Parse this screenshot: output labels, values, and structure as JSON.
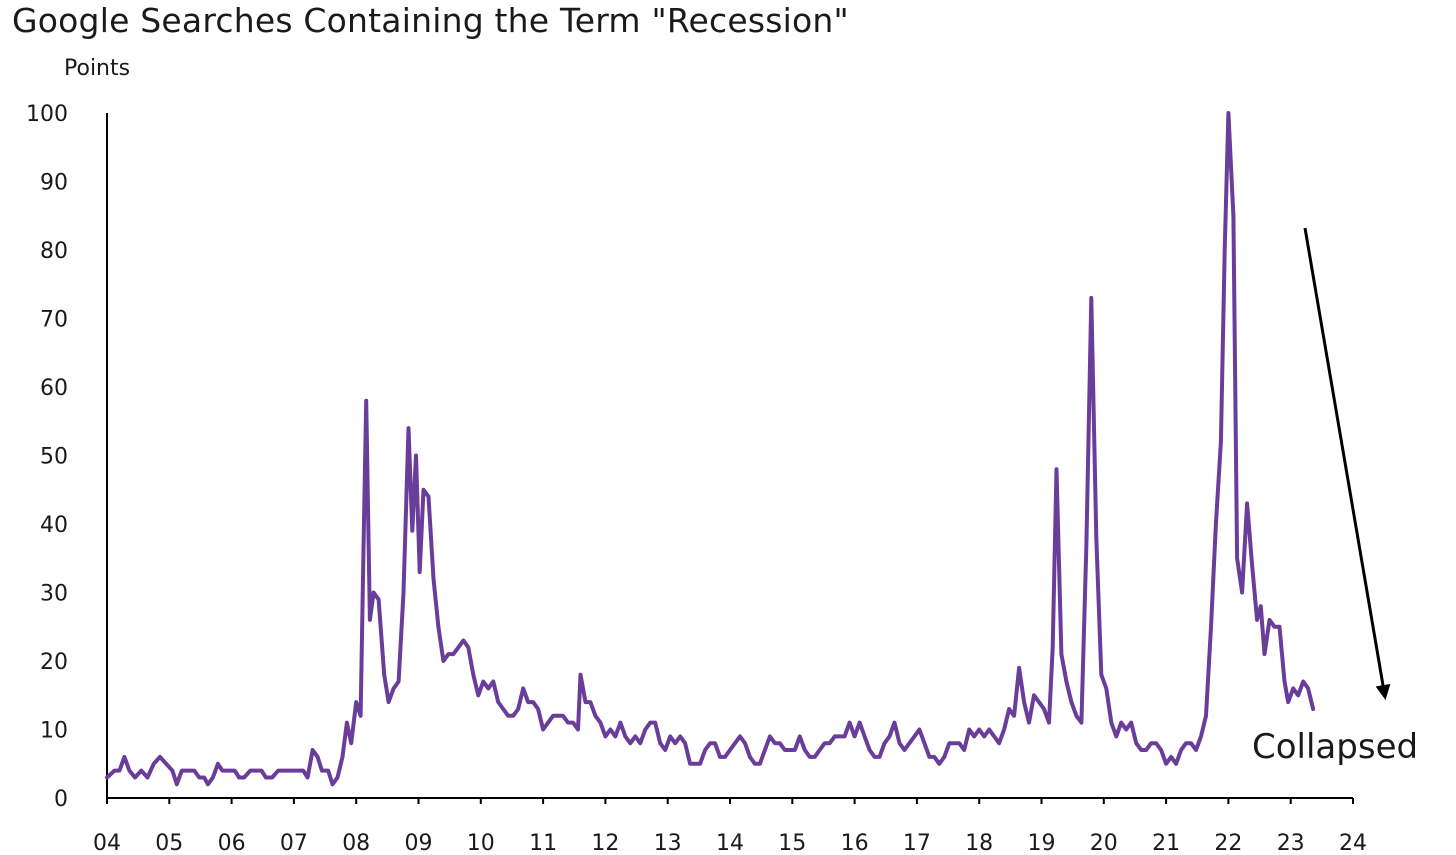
{
  "chart_data": {
    "type": "line",
    "title": "Google Searches Containing the Term \"Recession\"",
    "ylabel": "Points",
    "xlabel": "",
    "ylim": [
      0,
      100
    ],
    "yticks": [
      0,
      10,
      20,
      30,
      40,
      50,
      60,
      70,
      80,
      90,
      100
    ],
    "xticks": [
      "04",
      "05",
      "06",
      "07",
      "08",
      "09",
      "10",
      "11",
      "12",
      "13",
      "14",
      "15",
      "16",
      "17",
      "18",
      "19",
      "20",
      "21",
      "22",
      "23",
      "24"
    ],
    "xlim": [
      2004.0,
      2024.0
    ],
    "grid": false,
    "color": "#6a3d9a",
    "series": [
      {
        "points": [
          [
            2004.0,
            3
          ],
          [
            2004.12,
            4
          ],
          [
            2004.2,
            4
          ],
          [
            2004.28,
            6
          ],
          [
            2004.36,
            4
          ],
          [
            2004.45,
            3
          ],
          [
            2004.55,
            4
          ],
          [
            2004.65,
            3
          ],
          [
            2004.75,
            5
          ],
          [
            2004.85,
            6
          ],
          [
            2004.95,
            5
          ],
          [
            2005.05,
            4
          ],
          [
            2005.12,
            2
          ],
          [
            2005.2,
            4
          ],
          [
            2005.3,
            4
          ],
          [
            2005.4,
            4
          ],
          [
            2005.48,
            3
          ],
          [
            2005.56,
            3
          ],
          [
            2005.62,
            2
          ],
          [
            2005.7,
            3
          ],
          [
            2005.78,
            5
          ],
          [
            2005.85,
            4
          ],
          [
            2005.95,
            4
          ],
          [
            2006.05,
            4
          ],
          [
            2006.12,
            3
          ],
          [
            2006.2,
            3
          ],
          [
            2006.3,
            4
          ],
          [
            2006.4,
            4
          ],
          [
            2006.48,
            4
          ],
          [
            2006.55,
            3
          ],
          [
            2006.65,
            3
          ],
          [
            2006.75,
            4
          ],
          [
            2006.9,
            4
          ],
          [
            2007.05,
            4
          ],
          [
            2007.15,
            4
          ],
          [
            2007.22,
            3
          ],
          [
            2007.3,
            7
          ],
          [
            2007.38,
            6
          ],
          [
            2007.45,
            4
          ],
          [
            2007.55,
            4
          ],
          [
            2007.62,
            2
          ],
          [
            2007.7,
            3
          ],
          [
            2007.78,
            6
          ],
          [
            2007.85,
            11
          ],
          [
            2007.92,
            8
          ],
          [
            2008.0,
            14
          ],
          [
            2008.07,
            12
          ],
          [
            2008.12,
            38
          ],
          [
            2008.16,
            58
          ],
          [
            2008.22,
            26
          ],
          [
            2008.28,
            30
          ],
          [
            2008.36,
            29
          ],
          [
            2008.45,
            18
          ],
          [
            2008.52,
            14
          ],
          [
            2008.6,
            16
          ],
          [
            2008.68,
            17
          ],
          [
            2008.76,
            30
          ],
          [
            2008.84,
            54
          ],
          [
            2008.9,
            39
          ],
          [
            2008.96,
            50
          ],
          [
            2009.02,
            33
          ],
          [
            2009.08,
            45
          ],
          [
            2009.16,
            44
          ],
          [
            2009.24,
            32
          ],
          [
            2009.32,
            25
          ],
          [
            2009.4,
            20
          ],
          [
            2009.48,
            21
          ],
          [
            2009.56,
            21
          ],
          [
            2009.64,
            22
          ],
          [
            2009.72,
            23
          ],
          [
            2009.8,
            22
          ],
          [
            2009.88,
            18
          ],
          [
            2009.96,
            15
          ],
          [
            2010.04,
            17
          ],
          [
            2010.12,
            16
          ],
          [
            2010.2,
            17
          ],
          [
            2010.28,
            14
          ],
          [
            2010.36,
            13
          ],
          [
            2010.44,
            12
          ],
          [
            2010.52,
            12
          ],
          [
            2010.6,
            13
          ],
          [
            2010.68,
            16
          ],
          [
            2010.76,
            14
          ],
          [
            2010.84,
            14
          ],
          [
            2010.92,
            13
          ],
          [
            2011.0,
            10
          ],
          [
            2011.08,
            11
          ],
          [
            2011.16,
            12
          ],
          [
            2011.24,
            12
          ],
          [
            2011.32,
            12
          ],
          [
            2011.4,
            11
          ],
          [
            2011.48,
            11
          ],
          [
            2011.56,
            10
          ],
          [
            2011.6,
            18
          ],
          [
            2011.68,
            14
          ],
          [
            2011.76,
            14
          ],
          [
            2011.84,
            12
          ],
          [
            2011.92,
            11
          ],
          [
            2012.0,
            9
          ],
          [
            2012.08,
            10
          ],
          [
            2012.16,
            9
          ],
          [
            2012.24,
            11
          ],
          [
            2012.32,
            9
          ],
          [
            2012.4,
            8
          ],
          [
            2012.48,
            9
          ],
          [
            2012.56,
            8
          ],
          [
            2012.64,
            10
          ],
          [
            2012.72,
            11
          ],
          [
            2012.8,
            11
          ],
          [
            2012.88,
            8
          ],
          [
            2012.96,
            7
          ],
          [
            2013.04,
            9
          ],
          [
            2013.12,
            8
          ],
          [
            2013.2,
            9
          ],
          [
            2013.28,
            8
          ],
          [
            2013.36,
            5
          ],
          [
            2013.44,
            5
          ],
          [
            2013.52,
            5
          ],
          [
            2013.6,
            7
          ],
          [
            2013.68,
            8
          ],
          [
            2013.76,
            8
          ],
          [
            2013.84,
            6
          ],
          [
            2013.92,
            6
          ],
          [
            2014.0,
            7
          ],
          [
            2014.08,
            8
          ],
          [
            2014.16,
            9
          ],
          [
            2014.24,
            8
          ],
          [
            2014.32,
            6
          ],
          [
            2014.4,
            5
          ],
          [
            2014.48,
            5
          ],
          [
            2014.56,
            7
          ],
          [
            2014.64,
            9
          ],
          [
            2014.72,
            8
          ],
          [
            2014.8,
            8
          ],
          [
            2014.88,
            7
          ],
          [
            2014.96,
            7
          ],
          [
            2015.04,
            7
          ],
          [
            2015.12,
            9
          ],
          [
            2015.2,
            7
          ],
          [
            2015.28,
            6
          ],
          [
            2015.36,
            6
          ],
          [
            2015.44,
            7
          ],
          [
            2015.52,
            8
          ],
          [
            2015.6,
            8
          ],
          [
            2015.68,
            9
          ],
          [
            2015.76,
            9
          ],
          [
            2015.84,
            9
          ],
          [
            2015.92,
            11
          ],
          [
            2016.0,
            9
          ],
          [
            2016.08,
            11
          ],
          [
            2016.16,
            9
          ],
          [
            2016.24,
            7
          ],
          [
            2016.32,
            6
          ],
          [
            2016.4,
            6
          ],
          [
            2016.48,
            8
          ],
          [
            2016.56,
            9
          ],
          [
            2016.64,
            11
          ],
          [
            2016.72,
            8
          ],
          [
            2016.8,
            7
          ],
          [
            2016.88,
            8
          ],
          [
            2016.96,
            9
          ],
          [
            2017.04,
            10
          ],
          [
            2017.12,
            8
          ],
          [
            2017.2,
            6
          ],
          [
            2017.28,
            6
          ],
          [
            2017.36,
            5
          ],
          [
            2017.44,
            6
          ],
          [
            2017.52,
            8
          ],
          [
            2017.6,
            8
          ],
          [
            2017.68,
            8
          ],
          [
            2017.76,
            7
          ],
          [
            2017.84,
            10
          ],
          [
            2017.92,
            9
          ],
          [
            2018.0,
            10
          ],
          [
            2018.08,
            9
          ],
          [
            2018.16,
            10
          ],
          [
            2018.24,
            9
          ],
          [
            2018.32,
            8
          ],
          [
            2018.4,
            10
          ],
          [
            2018.48,
            13
          ],
          [
            2018.56,
            12
          ],
          [
            2018.64,
            19
          ],
          [
            2018.72,
            14
          ],
          [
            2018.8,
            11
          ],
          [
            2018.88,
            15
          ],
          [
            2018.96,
            14
          ],
          [
            2019.04,
            13
          ],
          [
            2019.12,
            11
          ],
          [
            2019.18,
            22
          ],
          [
            2019.24,
            48
          ],
          [
            2019.32,
            21
          ],
          [
            2019.4,
            17
          ],
          [
            2019.48,
            14
          ],
          [
            2019.56,
            12
          ],
          [
            2019.64,
            11
          ],
          [
            2019.72,
            37
          ],
          [
            2019.8,
            73
          ],
          [
            2019.88,
            38
          ],
          [
            2019.96,
            18
          ],
          [
            2020.04,
            16
          ],
          [
            2020.12,
            11
          ],
          [
            2020.2,
            9
          ],
          [
            2020.28,
            11
          ],
          [
            2020.36,
            10
          ],
          [
            2020.44,
            11
          ],
          [
            2020.52,
            8
          ],
          [
            2020.6,
            7
          ],
          [
            2020.68,
            7
          ],
          [
            2020.76,
            8
          ],
          [
            2020.84,
            8
          ],
          [
            2020.92,
            7
          ],
          [
            2021.0,
            5
          ],
          [
            2021.08,
            6
          ],
          [
            2021.16,
            5
          ],
          [
            2021.24,
            7
          ],
          [
            2021.32,
            8
          ],
          [
            2021.4,
            8
          ],
          [
            2021.48,
            7
          ],
          [
            2021.56,
            9
          ],
          [
            2021.64,
            12
          ],
          [
            2021.72,
            25
          ],
          [
            2021.8,
            40
          ],
          [
            2021.88,
            52
          ],
          [
            2021.94,
            80
          ],
          [
            2022.0,
            100
          ],
          [
            2022.08,
            85
          ],
          [
            2022.14,
            35
          ],
          [
            2022.22,
            30
          ],
          [
            2022.3,
            43
          ],
          [
            2022.38,
            34
          ],
          [
            2022.46,
            26
          ],
          [
            2022.52,
            28
          ],
          [
            2022.58,
            21
          ],
          [
            2022.66,
            26
          ],
          [
            2022.74,
            25
          ],
          [
            2022.82,
            25
          ],
          [
            2022.9,
            17
          ],
          [
            2022.96,
            14
          ],
          [
            2023.04,
            16
          ],
          [
            2023.12,
            15
          ],
          [
            2023.2,
            17
          ],
          [
            2023.28,
            16
          ],
          [
            2023.36,
            13
          ]
        ]
      }
    ],
    "annotation": {
      "text": "Collapsed",
      "arrow": "down-right"
    }
  }
}
